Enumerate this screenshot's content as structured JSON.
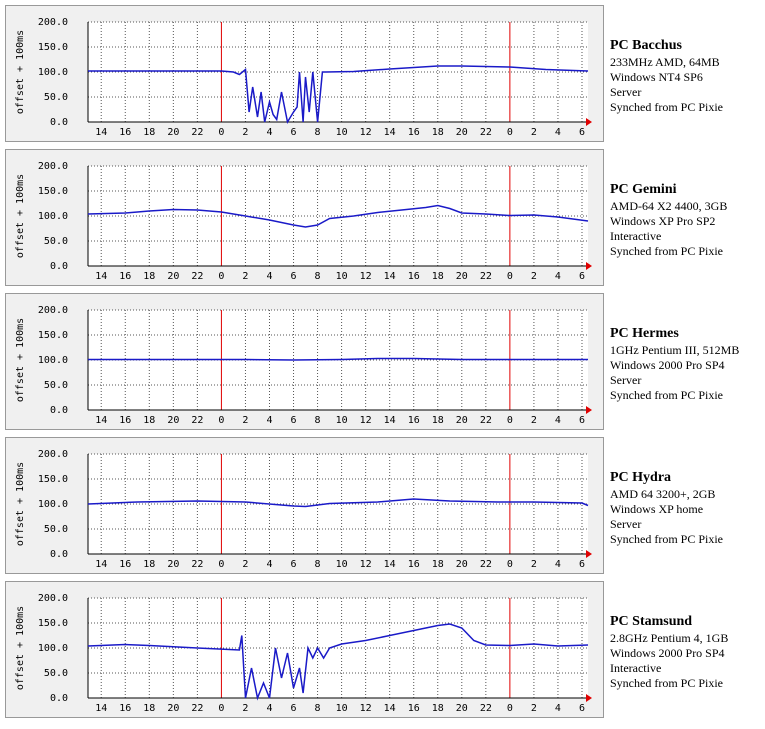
{
  "chart_data": [
    {
      "type": "line",
      "title": "PC Bacchus",
      "details": [
        "233MHz AMD, 64MB",
        "Windows NT4 SP6",
        "Server",
        "Synched from PC Pixie"
      ],
      "ylabel": "offset + 100ms",
      "color": "#1a1ac8",
      "grid": true,
      "xlim": [
        12.9,
        54.5
      ],
      "ylim": [
        0,
        200
      ],
      "xticks": [
        14,
        16,
        18,
        20,
        22,
        {
          "value": 24,
          "label": "0"
        },
        {
          "value": 26,
          "label": "2"
        },
        {
          "value": 28,
          "label": "4"
        },
        {
          "value": 30,
          "label": "6"
        },
        {
          "value": 32,
          "label": "8"
        },
        {
          "value": 34,
          "label": "10"
        },
        {
          "value": 36,
          "label": "12"
        },
        {
          "value": 38,
          "label": "14"
        },
        {
          "value": 40,
          "label": "16"
        },
        {
          "value": 42,
          "label": "18"
        },
        {
          "value": 44,
          "label": "20"
        },
        {
          "value": 46,
          "label": "22"
        },
        {
          "value": 48,
          "label": "0"
        },
        {
          "value": 50,
          "label": "2"
        },
        {
          "value": 52,
          "label": "4"
        },
        {
          "value": 54,
          "label": "6"
        }
      ],
      "yticks": [
        {
          "value": 0,
          "label": "0.0"
        },
        {
          "value": 50,
          "label": "50.0"
        },
        {
          "value": 100,
          "label": "100.0"
        },
        {
          "value": 150,
          "label": "150.0"
        },
        {
          "value": 200,
          "label": "200.0"
        }
      ],
      "x": [
        12.9,
        16,
        20,
        24,
        25,
        25.5,
        26,
        26.3,
        26.6,
        27,
        27.3,
        27.6,
        28,
        28.3,
        28.6,
        29,
        29.5,
        30,
        30.3,
        30.5,
        30.8,
        31,
        31.3,
        31.6,
        32,
        32.4,
        32.7,
        35,
        38,
        42,
        44,
        48,
        51,
        54.5
      ],
      "values": [
        102,
        102,
        102,
        102,
        100,
        95,
        105,
        20,
        70,
        10,
        60,
        0,
        40,
        15,
        5,
        60,
        0,
        20,
        30,
        100,
        0,
        90,
        20,
        100,
        0,
        100,
        100,
        101,
        106,
        112,
        112,
        110,
        105,
        102
      ]
    },
    {
      "type": "line",
      "title": "PC Gemini",
      "details": [
        "AMD-64 X2 4400, 3GB",
        "Windows XP Pro SP2",
        "Interactive",
        "Synched from PC Pixie"
      ],
      "ylabel": "offset + 100ms",
      "color": "#1a1ac8",
      "grid": true,
      "xlim": [
        12.9,
        54.5
      ],
      "ylim": [
        0,
        200
      ],
      "xticks": [
        14,
        16,
        18,
        20,
        22,
        {
          "value": 24,
          "label": "0"
        },
        {
          "value": 26,
          "label": "2"
        },
        {
          "value": 28,
          "label": "4"
        },
        {
          "value": 30,
          "label": "6"
        },
        {
          "value": 32,
          "label": "8"
        },
        {
          "value": 34,
          "label": "10"
        },
        {
          "value": 36,
          "label": "12"
        },
        {
          "value": 38,
          "label": "14"
        },
        {
          "value": 40,
          "label": "16"
        },
        {
          "value": 42,
          "label": "18"
        },
        {
          "value": 44,
          "label": "20"
        },
        {
          "value": 46,
          "label": "22"
        },
        {
          "value": 48,
          "label": "0"
        },
        {
          "value": 50,
          "label": "2"
        },
        {
          "value": 52,
          "label": "4"
        },
        {
          "value": 54,
          "label": "6"
        }
      ],
      "yticks": [
        {
          "value": 0,
          "label": "0.0"
        },
        {
          "value": 50,
          "label": "50.0"
        },
        {
          "value": 100,
          "label": "100.0"
        },
        {
          "value": 150,
          "label": "150.0"
        },
        {
          "value": 200,
          "label": "200.0"
        }
      ],
      "x": [
        12.9,
        16,
        18,
        20,
        22,
        24,
        26,
        28,
        30,
        31,
        32,
        33,
        35,
        37,
        39,
        41,
        42,
        43,
        44,
        46,
        48,
        50,
        52,
        54.5
      ],
      "values": [
        104,
        106,
        110,
        113,
        112,
        108,
        100,
        92,
        82,
        78,
        82,
        95,
        100,
        107,
        112,
        117,
        121,
        115,
        106,
        104,
        101,
        102,
        98,
        90
      ]
    },
    {
      "type": "line",
      "title": "PC Hermes",
      "details": [
        "1GHz Pentium III, 512MB",
        "Windows 2000 Pro SP4",
        "Server",
        "Synched from PC Pixie"
      ],
      "ylabel": "offset + 100ms",
      "color": "#1a1ac8",
      "grid": true,
      "xlim": [
        12.9,
        54.5
      ],
      "ylim": [
        0,
        200
      ],
      "xticks": [
        14,
        16,
        18,
        20,
        22,
        {
          "value": 24,
          "label": "0"
        },
        {
          "value": 26,
          "label": "2"
        },
        {
          "value": 28,
          "label": "4"
        },
        {
          "value": 30,
          "label": "6"
        },
        {
          "value": 32,
          "label": "8"
        },
        {
          "value": 34,
          "label": "10"
        },
        {
          "value": 36,
          "label": "12"
        },
        {
          "value": 38,
          "label": "14"
        },
        {
          "value": 40,
          "label": "16"
        },
        {
          "value": 42,
          "label": "18"
        },
        {
          "value": 44,
          "label": "20"
        },
        {
          "value": 46,
          "label": "22"
        },
        {
          "value": 48,
          "label": "0"
        },
        {
          "value": 50,
          "label": "2"
        },
        {
          "value": 52,
          "label": "4"
        },
        {
          "value": 54,
          "label": "6"
        }
      ],
      "yticks": [
        {
          "value": 0,
          "label": "0.0"
        },
        {
          "value": 50,
          "label": "50.0"
        },
        {
          "value": 100,
          "label": "100.0"
        },
        {
          "value": 150,
          "label": "150.0"
        },
        {
          "value": 200,
          "label": "200.0"
        }
      ],
      "x": [
        12.9,
        20,
        26,
        30,
        34,
        37,
        40,
        44,
        48,
        54.5
      ],
      "values": [
        101,
        101,
        101,
        100,
        101,
        103,
        103,
        101,
        101,
        101
      ]
    },
    {
      "type": "line",
      "title": "PC Hydra",
      "details": [
        "AMD 64 3200+, 2GB",
        "Windows XP home",
        "Server",
        "Synched from PC Pixie"
      ],
      "ylabel": "offset + 100ms",
      "color": "#1a1ac8",
      "grid": true,
      "xlim": [
        12.9,
        54.5
      ],
      "ylim": [
        0,
        200
      ],
      "xticks": [
        14,
        16,
        18,
        20,
        22,
        {
          "value": 24,
          "label": "0"
        },
        {
          "value": 26,
          "label": "2"
        },
        {
          "value": 28,
          "label": "4"
        },
        {
          "value": 30,
          "label": "6"
        },
        {
          "value": 32,
          "label": "8"
        },
        {
          "value": 34,
          "label": "10"
        },
        {
          "value": 36,
          "label": "12"
        },
        {
          "value": 38,
          "label": "14"
        },
        {
          "value": 40,
          "label": "16"
        },
        {
          "value": 42,
          "label": "18"
        },
        {
          "value": 44,
          "label": "20"
        },
        {
          "value": 46,
          "label": "22"
        },
        {
          "value": 48,
          "label": "0"
        },
        {
          "value": 50,
          "label": "2"
        },
        {
          "value": 52,
          "label": "4"
        },
        {
          "value": 54,
          "label": "6"
        }
      ],
      "yticks": [
        {
          "value": 0,
          "label": "0.0"
        },
        {
          "value": 50,
          "label": "50.0"
        },
        {
          "value": 100,
          "label": "100.0"
        },
        {
          "value": 150,
          "label": "150.0"
        },
        {
          "value": 200,
          "label": "200.0"
        }
      ],
      "x": [
        12.9,
        17,
        22,
        26,
        30,
        31,
        33,
        37,
        40,
        43,
        47,
        50,
        54,
        54.5
      ],
      "values": [
        100,
        104,
        106,
        104,
        96,
        95,
        101,
        104,
        110,
        106,
        104,
        104,
        102,
        97
      ]
    },
    {
      "type": "line",
      "title": "PC Stamsund",
      "details": [
        "2.8GHz Pentium 4, 1GB",
        "Windows 2000 Pro SP4",
        "Interactive",
        "Synched from PC Pixie"
      ],
      "ylabel": "offset + 100ms",
      "color": "#1a1ac8",
      "grid": true,
      "xlim": [
        12.9,
        54.5
      ],
      "ylim": [
        0,
        200
      ],
      "xticks": [
        14,
        16,
        18,
        20,
        22,
        {
          "value": 24,
          "label": "0"
        },
        {
          "value": 26,
          "label": "2"
        },
        {
          "value": 28,
          "label": "4"
        },
        {
          "value": 30,
          "label": "6"
        },
        {
          "value": 32,
          "label": "8"
        },
        {
          "value": 34,
          "label": "10"
        },
        {
          "value": 36,
          "label": "12"
        },
        {
          "value": 38,
          "label": "14"
        },
        {
          "value": 40,
          "label": "16"
        },
        {
          "value": 42,
          "label": "18"
        },
        {
          "value": 44,
          "label": "20"
        },
        {
          "value": 46,
          "label": "22"
        },
        {
          "value": 48,
          "label": "0"
        },
        {
          "value": 50,
          "label": "2"
        },
        {
          "value": 52,
          "label": "4"
        },
        {
          "value": 54,
          "label": "6"
        }
      ],
      "yticks": [
        {
          "value": 0,
          "label": "0.0"
        },
        {
          "value": 50,
          "label": "50.0"
        },
        {
          "value": 100,
          "label": "100.0"
        },
        {
          "value": 150,
          "label": "150.0"
        },
        {
          "value": 200,
          "label": "200.0"
        }
      ],
      "x": [
        12.9,
        16,
        18,
        22,
        25.5,
        25.7,
        26,
        26.5,
        27,
        27.5,
        28,
        28.5,
        29,
        29.5,
        30,
        30.5,
        30.8,
        31.2,
        31.6,
        32,
        32.5,
        33,
        34,
        36,
        38,
        40,
        42,
        43,
        44,
        45,
        46,
        48,
        50,
        52,
        54.5
      ],
      "values": [
        104,
        107,
        105,
        100,
        96,
        125,
        0,
        60,
        0,
        30,
        0,
        100,
        40,
        90,
        20,
        60,
        10,
        100,
        80,
        100,
        80,
        100,
        108,
        115,
        125,
        135,
        145,
        148,
        140,
        115,
        106,
        105,
        108,
        104,
        106
      ]
    }
  ]
}
